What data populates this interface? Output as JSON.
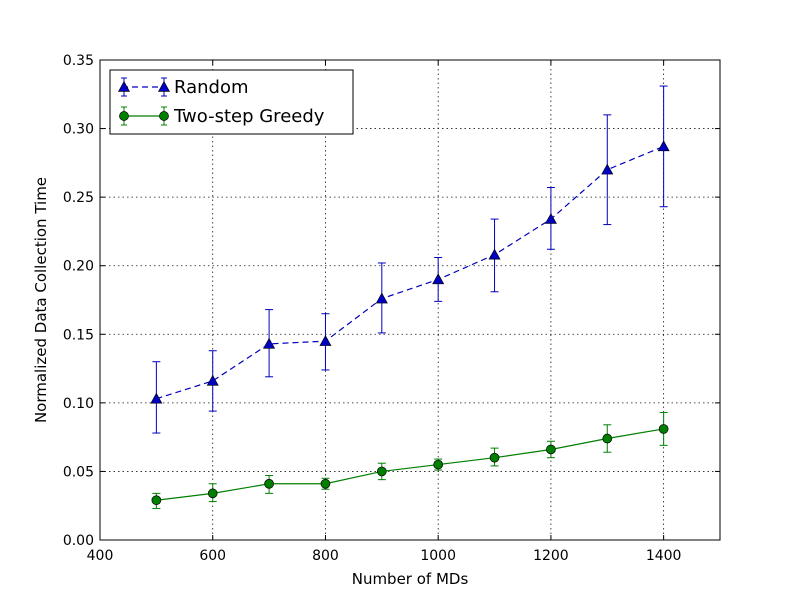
{
  "chart_data": {
    "type": "line",
    "xlabel": "Number of MDs",
    "ylabel": "Normalized Data Collection Time",
    "xlim": [
      400,
      1500
    ],
    "ylim": [
      0,
      0.35
    ],
    "xticks": [
      400,
      600,
      800,
      1000,
      1200,
      1400
    ],
    "xtick_labels": [
      "400",
      "600",
      "800",
      "1000",
      "1200",
      "1400"
    ],
    "yticks": [
      0,
      0.05,
      0.1,
      0.15,
      0.2,
      0.25,
      0.3,
      0.35
    ],
    "ytick_labels": [
      "0.00",
      "0.05",
      "0.10",
      "0.15",
      "0.20",
      "0.25",
      "0.30",
      "0.35"
    ],
    "grid": true,
    "legend_position": "top-left",
    "x": [
      500,
      600,
      700,
      800,
      900,
      1000,
      1100,
      1200,
      1300,
      1400
    ],
    "series": [
      {
        "name": "Random",
        "color": "#0000bf",
        "marker": "triangle",
        "linestyle": "dashed",
        "values": [
          0.103,
          0.116,
          0.143,
          0.145,
          0.176,
          0.19,
          0.208,
          0.234,
          0.27,
          0.287
        ],
        "err_low": [
          0.078,
          0.094,
          0.119,
          0.124,
          0.151,
          0.174,
          0.181,
          0.212,
          0.23,
          0.243
        ],
        "err_high": [
          0.13,
          0.138,
          0.168,
          0.165,
          0.202,
          0.206,
          0.234,
          0.257,
          0.31,
          0.331
        ]
      },
      {
        "name": "Two-step Greedy",
        "color": "#007f00",
        "marker": "circle",
        "linestyle": "solid",
        "values": [
          0.029,
          0.034,
          0.041,
          0.041,
          0.05,
          0.055,
          0.06,
          0.066,
          0.074,
          0.081
        ],
        "err_low": [
          0.023,
          0.028,
          0.034,
          0.037,
          0.044,
          0.051,
          0.054,
          0.06,
          0.064,
          0.069
        ],
        "err_high": [
          0.034,
          0.041,
          0.047,
          0.045,
          0.056,
          0.059,
          0.067,
          0.072,
          0.084,
          0.093
        ]
      }
    ]
  }
}
